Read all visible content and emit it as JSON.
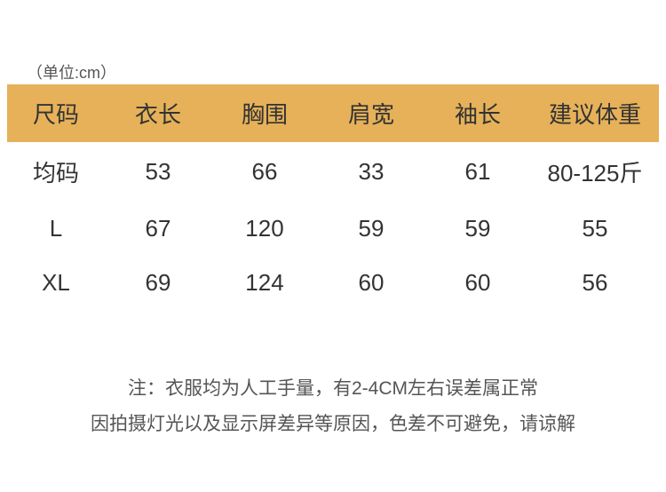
{
  "unit_label": "（单位:cm）",
  "table": {
    "header_bg": "#e6b159",
    "text_color": "#333333",
    "columns": [
      "尺码",
      "衣长",
      "胸围",
      "肩宽",
      "袖长",
      "建议体重"
    ],
    "rows": [
      [
        "均码",
        "53",
        "66",
        "33",
        "61",
        "80-125斤"
      ],
      [
        "L",
        "67",
        "120",
        "59",
        "59",
        "55"
      ],
      [
        "XL",
        "69",
        "124",
        "60",
        "60",
        "56"
      ]
    ]
  },
  "notes": {
    "line1": "注：衣服均为人工手量，有2-4CM左右误差属正常",
    "line2": "因拍摄灯光以及显示屏差异等原因，色差不可避免，请谅解"
  }
}
